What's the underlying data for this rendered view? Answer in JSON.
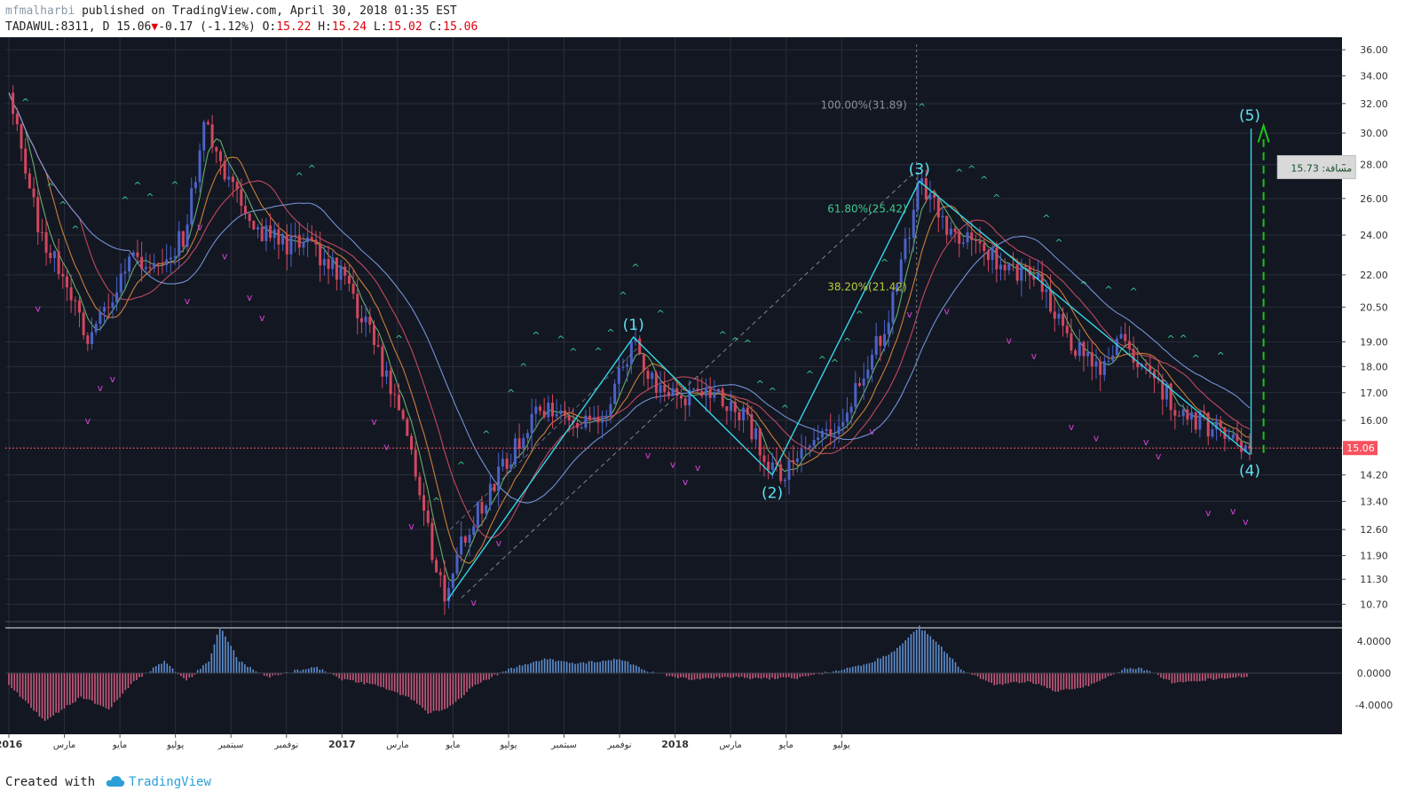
{
  "header": {
    "author": "mfmalharbi",
    "published_text": " published on TradingView.com, April 30, 2018 01:35 EST",
    "symbol_line": "TADAWUL:8311, D 15.06",
    "change_text": "-0.17 (-1.12%)",
    "o_label": " O:",
    "o_value": "15.22",
    "h_label": " H:",
    "h_value": "15.24",
    "l_label": " L:",
    "l_value": "15.02",
    "c_label": " C:",
    "c_value": "15.06"
  },
  "footer": {
    "created_with": "Created with",
    "brand": "TradingView"
  },
  "colors": {
    "background": "#131722",
    "grid": "#2a2e39",
    "up_candle": "#4a62c8",
    "down_candle": "#d2475e",
    "wave_lines": "#35d6e6",
    "wave_labels": "#5ee2f0",
    "fib_618": "#3ec98e",
    "fib_382": "#b9cd3a",
    "fib_100": "#8a8f98",
    "target_arrow": "#18c418",
    "current_price": "#f7525f",
    "signal_up": "#36d28b",
    "signal_down": "#d640d6"
  },
  "chart_data": {
    "type": "candlestick",
    "symbol": "TADAWUL:8311",
    "interval": "D",
    "y_scale": "log",
    "ylim": [
      10.3,
      37.0
    ],
    "price_ticks": [
      "36.00",
      "34.00",
      "32.00",
      "30.00",
      "28.00",
      "26.00",
      "24.00",
      "22.00",
      "20.50",
      "19.00",
      "18.00",
      "17.00",
      "16.00",
      "15.06",
      "14.20",
      "13.40",
      "12.60",
      "11.90",
      "11.30",
      "10.70"
    ],
    "time_labels": [
      "2016",
      "مارس",
      "مايو",
      "يوليو",
      "سبتمبر",
      "نوفمبر",
      "2017",
      "مارس",
      "مايو",
      "يوليو",
      "سبتمبر",
      "نوفمبر",
      "2018",
      "مارس",
      "مايو",
      "يوليو"
    ],
    "last_price": 15.06,
    "price_path": [
      [
        0,
        33.5
      ],
      [
        0.6,
        27
      ],
      [
        1.3,
        23.5
      ],
      [
        2,
        22
      ],
      [
        2.8,
        18.8
      ],
      [
        3.6,
        20.5
      ],
      [
        4.4,
        23
      ],
      [
        5.3,
        22
      ],
      [
        6.3,
        24
      ],
      [
        7.1,
        31
      ],
      [
        7.9,
        27
      ],
      [
        8.8,
        24.5
      ],
      [
        9.8,
        23.5
      ],
      [
        10.9,
        23.5
      ],
      [
        11.9,
        22
      ],
      [
        12.8,
        20
      ],
      [
        13.8,
        17
      ],
      [
        14.6,
        14.5
      ],
      [
        15.2,
        12.2
      ],
      [
        15.8,
        10.8
      ],
      [
        16.4,
        12.5
      ],
      [
        17.2,
        13.5
      ],
      [
        18.2,
        15
      ],
      [
        19.2,
        16.5
      ],
      [
        20.4,
        16
      ],
      [
        21.5,
        16.3
      ],
      [
        22.5,
        19.2
      ],
      [
        23.1,
        17.5
      ],
      [
        24.2,
        16.7
      ],
      [
        25.4,
        17.2
      ],
      [
        26.6,
        16
      ],
      [
        27.6,
        14.2
      ],
      [
        28.6,
        14.7
      ],
      [
        29.7,
        15.8
      ],
      [
        30.8,
        17.5
      ],
      [
        31.8,
        20.5
      ],
      [
        32.8,
        27
      ],
      [
        33.8,
        24.5
      ],
      [
        34.8,
        23.3
      ],
      [
        36,
        22.5
      ],
      [
        37.1,
        21.5
      ],
      [
        38.2,
        19
      ],
      [
        39.3,
        17.8
      ],
      [
        40.1,
        19.2
      ],
      [
        41.2,
        17.6
      ],
      [
        42.2,
        16.3
      ],
      [
        43.2,
        15.8
      ],
      [
        44.7,
        15.06
      ]
    ],
    "elliott_waves": [
      {
        "label": "(1)",
        "price": 19.2
      },
      {
        "label": "(2)",
        "price": 14.2
      },
      {
        "label": "(3)",
        "price": 27.0
      },
      {
        "label": "(4)",
        "price": 14.9
      },
      {
        "label": "(5)",
        "price": 30.6
      }
    ],
    "fib_levels": [
      {
        "label": "100.00%(31.89)",
        "price": 31.89
      },
      {
        "label": "61.80%(25.42)",
        "price": 25.42
      },
      {
        "label": "38.20%(21.42)",
        "price": 21.42
      }
    ],
    "measure_label": "مسافة: 15.73",
    "oscillator": {
      "ticks": [
        "4.0000",
        "0.0000",
        "-4.0000"
      ],
      "ylim": [
        -6.2,
        6.2
      ]
    }
  }
}
